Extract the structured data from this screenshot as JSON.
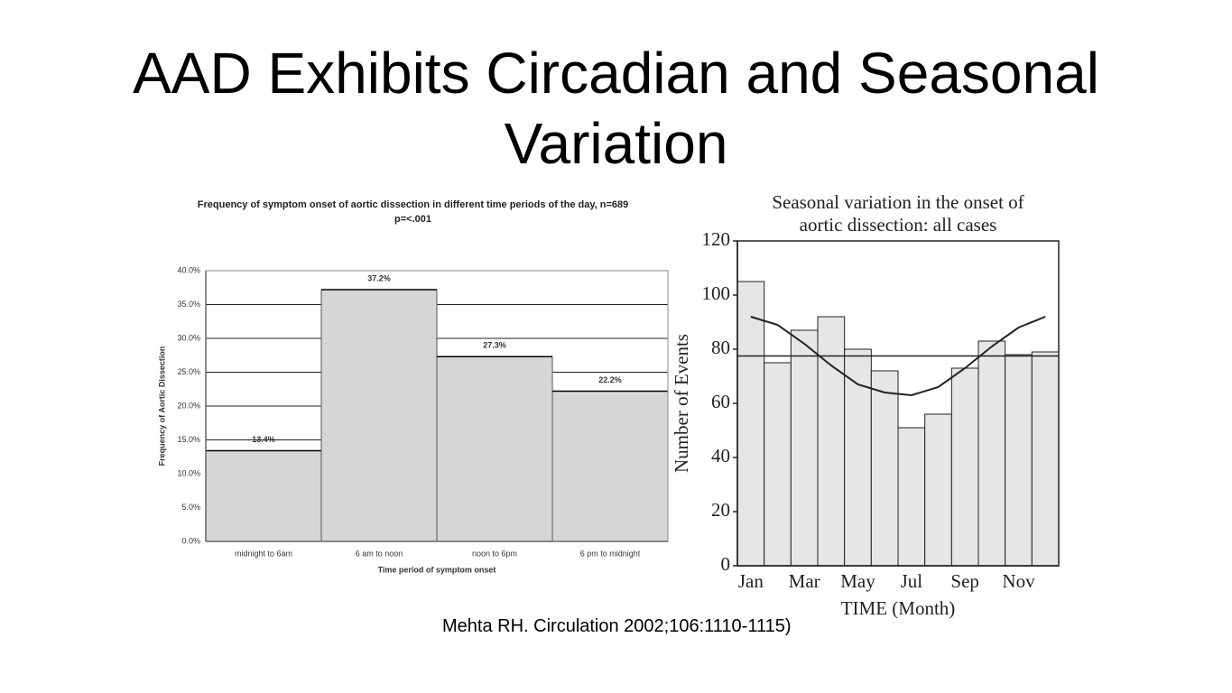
{
  "title": "AAD Exhibits Circadian and Seasonal Variation",
  "citation": "Mehta RH. Circulation 2002;106:1110-1115)",
  "chart_data": [
    {
      "type": "bar",
      "title": "Frequency of symptom onset of aortic dissection in different time periods of the day, n=689 p=<.001",
      "x_label": "Time period of symptom onset",
      "y_label": "Frequency of Aortic Dissection",
      "categories": [
        "midnight to 6am",
        "6 am to noon",
        "noon to 6pm",
        "6 pm to midnight"
      ],
      "values": [
        13.4,
        37.2,
        27.3,
        22.2
      ],
      "value_labels": [
        "13.4%",
        "37.2%",
        "27.3%",
        "22.2%"
      ],
      "color": "#d6d6d6",
      "ylim": [
        0,
        40
      ],
      "yticks": [
        {
          "value": 0,
          "label": "0.0%"
        },
        {
          "value": 5,
          "label": "5.0%"
        },
        {
          "value": 10,
          "label": "10.0%"
        },
        {
          "value": 15,
          "label": "15.0%"
        },
        {
          "value": 20,
          "label": "20.0%"
        },
        {
          "value": 25,
          "label": "25.0%"
        },
        {
          "value": 30,
          "label": "30.0%"
        },
        {
          "value": 35,
          "label": "35.0%"
        },
        {
          "value": 40,
          "label": "40.0%"
        }
      ],
      "grid": true
    },
    {
      "type": "bar",
      "title": "Seasonal variation in the onset of aortic dissection: all cases",
      "x_label": "TIME (Month)",
      "y_label": "Number of Events",
      "categories": [
        "Jan",
        null,
        "Mar",
        null,
        "May",
        null,
        "Jul",
        null,
        "Sep",
        null,
        "Nov",
        null
      ],
      "values": [
        105,
        75,
        87,
        92,
        80,
        72,
        51,
        56,
        73,
        83,
        78,
        79
      ],
      "fit": [
        92,
        89,
        82,
        74,
        67,
        64,
        63,
        66,
        73,
        81,
        88,
        92
      ],
      "mean": 77.5,
      "color": "#e6e6e6",
      "ylim": [
        0,
        120
      ],
      "yticks": [
        0,
        20,
        40,
        60,
        80,
        100,
        120
      ],
      "grid": false
    }
  ]
}
